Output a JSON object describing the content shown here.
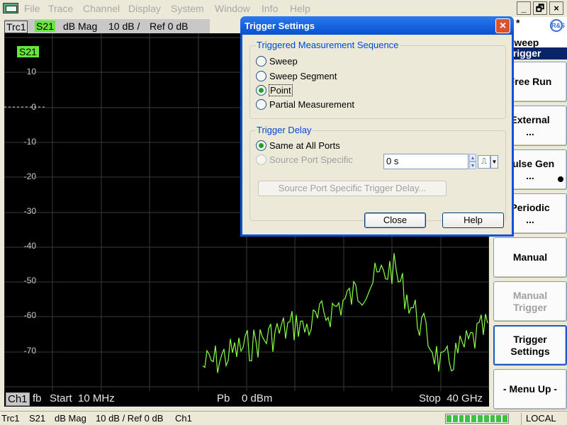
{
  "menu": [
    "File",
    "Trace",
    "Channel",
    "Display",
    "System",
    "Window",
    "Info",
    "Help"
  ],
  "window_controls": {
    "minimize": "_",
    "restore": "🗗",
    "close": "×"
  },
  "trace_header": {
    "trace": "Trc1",
    "param": "S21",
    "format": "dB Mag",
    "scale": "10 dB /",
    "ref": "Ref 0 dB"
  },
  "plot": {
    "marker_label": "S21",
    "y_ticks": [
      "10",
      "0",
      "-10",
      "-20",
      "-30",
      "-40",
      "-50",
      "-60",
      "-70"
    ],
    "reference_tick": "0"
  },
  "channel_bar": {
    "channel": "Ch1",
    "fb": "fb",
    "start": "Start  10 MHz",
    "power": "Pb    0 dBm",
    "stop": "Stop  40 GHz"
  },
  "softkeys": {
    "header_star": "*",
    "title1": "Sweep",
    "title2": "Trigger",
    "logo": "R&S",
    "items": [
      {
        "line1": "Free Run",
        "line2": ""
      },
      {
        "line1": "External",
        "line2": "..."
      },
      {
        "line1": "Pulse Gen",
        "line2": "..."
      },
      {
        "line1": "Periodic",
        "line2": "..."
      },
      {
        "line1": "Manual",
        "line2": ""
      },
      {
        "line1": "Manual",
        "line2": "Trigger"
      },
      {
        "line1": "Trigger",
        "line2": "Settings"
      },
      {
        "line1": "- Menu Up -",
        "line2": ""
      }
    ]
  },
  "statusbar": {
    "trace": "Trc1",
    "param": "S21",
    "format": "dB Mag",
    "scale": "10 dB / Ref 0 dB",
    "channel": "Ch1",
    "mode": "LOCAL"
  },
  "dialog": {
    "title": "Trigger Settings",
    "group1": {
      "label": "Triggered Measurement Sequence",
      "options": [
        "Sweep",
        "Sweep Segment",
        "Point",
        "Partial Measurement"
      ],
      "selected": "Point"
    },
    "group2": {
      "label": "Trigger Delay",
      "option_same": "Same at All Ports",
      "option_source": "Source Port Specific",
      "delay_value": "0 s",
      "port_button": "Source Port Specific Trigger Delay..."
    },
    "close_label": "Close",
    "help_label": "Help"
  },
  "trace_color": "#88ff44",
  "marker_color": "#66e63c"
}
